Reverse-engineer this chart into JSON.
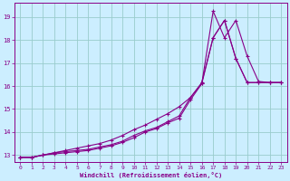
{
  "xlabel": "Windchill (Refroidissement éolien,°C)",
  "bg_color": "#cceeff",
  "line_color": "#880088",
  "grid_color": "#99cccc",
  "xlim": [
    -0.5,
    23.5
  ],
  "ylim": [
    12.7,
    19.6
  ],
  "xticks": [
    0,
    1,
    2,
    3,
    4,
    5,
    6,
    7,
    8,
    9,
    10,
    11,
    12,
    13,
    14,
    15,
    16,
    17,
    18,
    19,
    20,
    21,
    22,
    23
  ],
  "yticks": [
    13,
    14,
    15,
    16,
    17,
    18,
    19
  ],
  "line1_x": [
    0,
    1,
    2,
    3,
    4,
    5,
    6,
    7,
    8,
    9,
    10,
    11,
    12,
    13,
    14,
    15,
    16,
    17,
    18,
    19,
    20,
    21,
    22,
    23
  ],
  "line1_y": [
    12.9,
    12.9,
    13.0,
    13.05,
    13.1,
    13.15,
    13.2,
    13.3,
    13.4,
    13.55,
    13.75,
    14.0,
    14.15,
    14.4,
    14.6,
    15.4,
    16.1,
    19.25,
    18.1,
    18.85,
    17.3,
    16.2,
    16.15,
    16.15
  ],
  "line2_x": [
    0,
    1,
    2,
    3,
    4,
    5,
    6,
    7,
    8,
    9,
    10,
    11,
    12,
    13,
    14,
    15,
    16,
    17,
    18,
    19,
    20,
    21,
    22,
    23
  ],
  "line2_y": [
    12.9,
    12.9,
    13.0,
    13.1,
    13.15,
    13.2,
    13.25,
    13.35,
    13.45,
    13.6,
    13.85,
    14.05,
    14.2,
    14.45,
    14.7,
    15.5,
    16.15,
    18.1,
    18.85,
    17.2,
    16.15,
    16.15,
    16.15,
    16.15
  ],
  "line3_x": [
    0,
    1,
    2,
    3,
    4,
    5,
    6,
    7,
    8,
    9,
    10,
    11,
    12,
    13,
    14,
    15,
    16,
    17,
    18,
    19,
    20,
    21,
    22,
    23
  ],
  "line3_y": [
    12.9,
    12.9,
    13.0,
    13.1,
    13.2,
    13.3,
    13.4,
    13.5,
    13.65,
    13.85,
    14.1,
    14.3,
    14.55,
    14.8,
    15.1,
    15.5,
    16.1,
    18.1,
    18.85,
    17.2,
    16.15,
    16.15,
    16.15,
    16.15
  ]
}
